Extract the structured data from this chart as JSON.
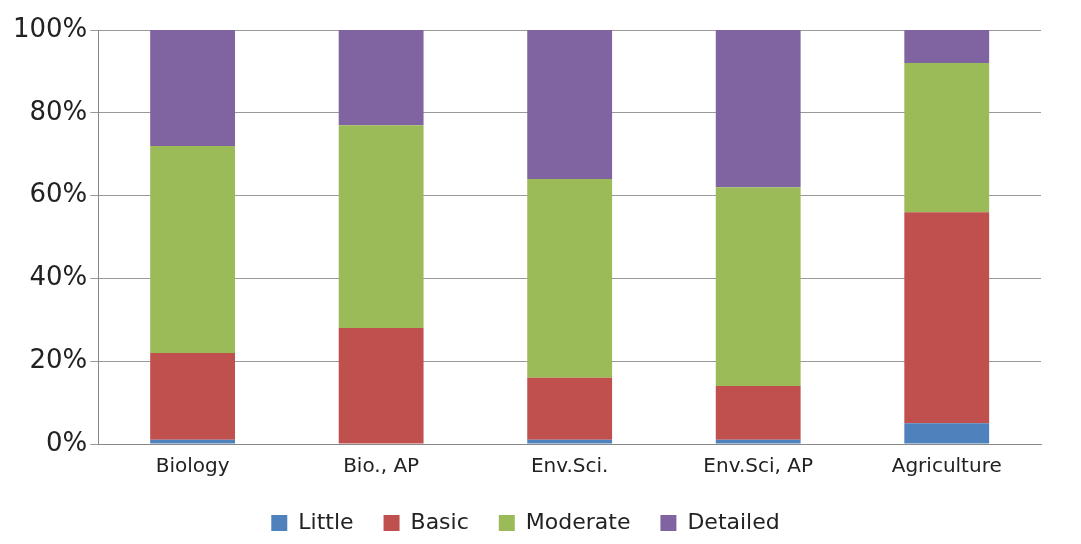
{
  "chart_data": {
    "type": "bar",
    "stacked": true,
    "categories": [
      "Biology",
      "Bio., AP",
      "Env.Sci.",
      "Env.Sci, AP",
      "Agriculture"
    ],
    "series": [
      {
        "name": "Little",
        "color": "#4f81bd",
        "values": [
          1,
          0,
          1,
          1,
          5
        ]
      },
      {
        "name": "Basic",
        "color": "#c0504d",
        "values": [
          21,
          28,
          15,
          13,
          51
        ]
      },
      {
        "name": "Moderate",
        "color": "#9bbb59",
        "values": [
          50,
          49,
          48,
          48,
          36
        ]
      },
      {
        "name": "Detailed",
        "color": "#8064a2",
        "values": [
          28,
          23,
          36,
          38,
          8
        ]
      }
    ],
    "ylim": [
      0,
      100
    ],
    "yticks": [
      {
        "value": 0,
        "label": "0%"
      },
      {
        "value": 20,
        "label": "20%"
      },
      {
        "value": 40,
        "label": "40%"
      },
      {
        "value": 60,
        "label": "60%"
      },
      {
        "value": 80,
        "label": "80%"
      },
      {
        "value": 100,
        "label": "100%"
      }
    ],
    "grid": "y",
    "legend": "bottom"
  }
}
